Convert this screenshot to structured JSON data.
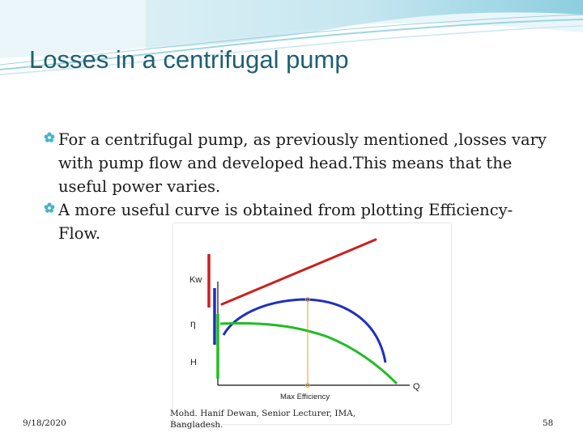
{
  "slide": {
    "title": "Losses in a centrifugal pump",
    "bullets": [
      {
        "text": "For a centrifugal pump, as previously mentioned ,losses vary with pump flow and developed head.This means that the useful power varies."
      },
      {
        "text": "A more useful curve is obtained from plotting Efficiency-Flow."
      }
    ],
    "bullet_icon": "flower-bullet-icon",
    "colors": {
      "title": "#1f5f73",
      "accent_wave": "#4bb3c9",
      "bullet_icon": "#4bb3c9"
    }
  },
  "figure": {
    "labels": {
      "kw": "Kw",
      "eta": "η",
      "h": "H",
      "q": "Q",
      "max_efficiency": "Max Efficiency"
    },
    "colors": {
      "power_curve": "#cc1f1f",
      "efficiency_curve": "#1f2fbf",
      "head_curve": "#22bb22",
      "max_marker": "#e6a020"
    }
  },
  "footer": {
    "date": "9/18/2020",
    "author_line1": "Mohd. Hanif Dewan, Senior Lecturer, IMA,",
    "author_line2": "Bangladesh.",
    "page_number": "58"
  }
}
